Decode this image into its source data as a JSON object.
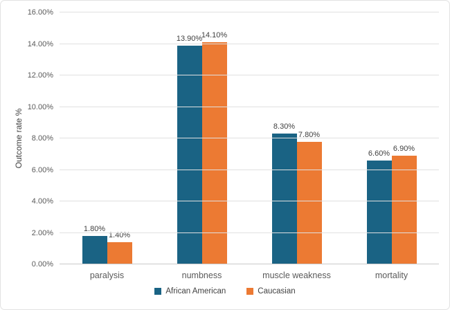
{
  "chart_data": {
    "type": "bar",
    "title": "",
    "xlabel": "",
    "ylabel": "Outcome rate %",
    "categories": [
      "paralysis",
      "numbness",
      "muscle weakness",
      "mortality"
    ],
    "series": [
      {
        "name": "African American",
        "color": "#1A6384",
        "values": [
          1.8,
          13.9,
          8.3,
          6.6
        ],
        "labels": [
          "1.80%",
          "13.90%",
          "8.30%",
          "6.60%"
        ]
      },
      {
        "name": "Caucasian",
        "color": "#EC7A33",
        "values": [
          1.4,
          14.1,
          7.8,
          6.9
        ],
        "labels": [
          "1.40%",
          "14.10%",
          "7.80%",
          "6.90%"
        ]
      }
    ],
    "ylim": [
      0,
      16
    ],
    "ytick_step": 2,
    "ytick_labels": [
      "0.00%",
      "2.00%",
      "4.00%",
      "6.00%",
      "8.00%",
      "10.00%",
      "12.00%",
      "14.00%",
      "16.00%"
    ],
    "grid": true,
    "legend_position": "bottom"
  },
  "colors": {
    "gridline": "#e0e0e0",
    "axis_line": "#c9c9c9",
    "tick_text": "#595959",
    "data_label_text": "#3f3f3f",
    "frame_border": "#e2e2e2",
    "background": "#ffffff"
  }
}
